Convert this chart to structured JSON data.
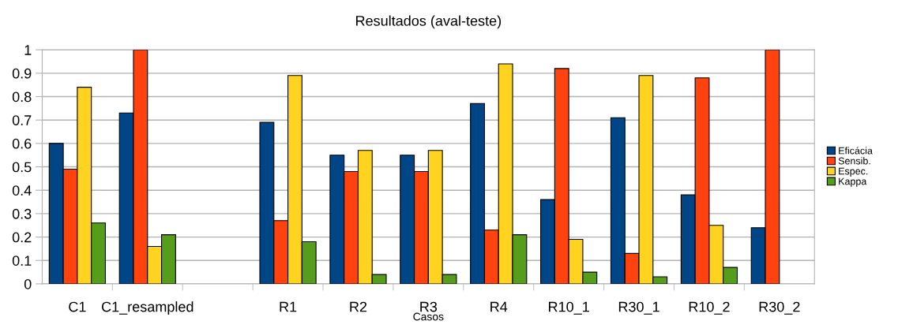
{
  "chart_data": {
    "type": "bar",
    "title": "Resultados (aval-teste)",
    "xlabel": "Casos",
    "categories": [
      "C1",
      "C1_resampled",
      null,
      "R1",
      "R2",
      "R3",
      "R4",
      "R10_1",
      "R30_1",
      "R10_2",
      "R30_2"
    ],
    "series": [
      {
        "name": "Eficácia",
        "color": "#004586",
        "values": [
          0.6,
          0.73,
          null,
          0.69,
          0.55,
          0.55,
          0.77,
          0.36,
          0.71,
          0.38,
          0.24
        ]
      },
      {
        "name": "Sensib.",
        "color": "#ff420e",
        "values": [
          0.49,
          1.0,
          null,
          0.27,
          0.48,
          0.48,
          0.23,
          0.92,
          0.13,
          0.88,
          1.0
        ]
      },
      {
        "name": "Espec.",
        "color": "#ffd320",
        "values": [
          0.84,
          0.16,
          null,
          0.89,
          0.57,
          0.57,
          0.94,
          0.19,
          0.89,
          0.25,
          null
        ]
      },
      {
        "name": "Kappa",
        "color": "#579d1c",
        "values": [
          0.26,
          0.21,
          null,
          0.18,
          0.04,
          0.04,
          0.21,
          0.05,
          0.03,
          0.07,
          null
        ]
      }
    ],
    "ylim": [
      0,
      1
    ],
    "yticks": [
      0,
      0.1,
      0.2,
      0.3,
      0.4,
      0.5,
      0.6,
      0.7,
      0.8,
      0.9,
      1
    ],
    "grid": "y",
    "legend": "right"
  }
}
